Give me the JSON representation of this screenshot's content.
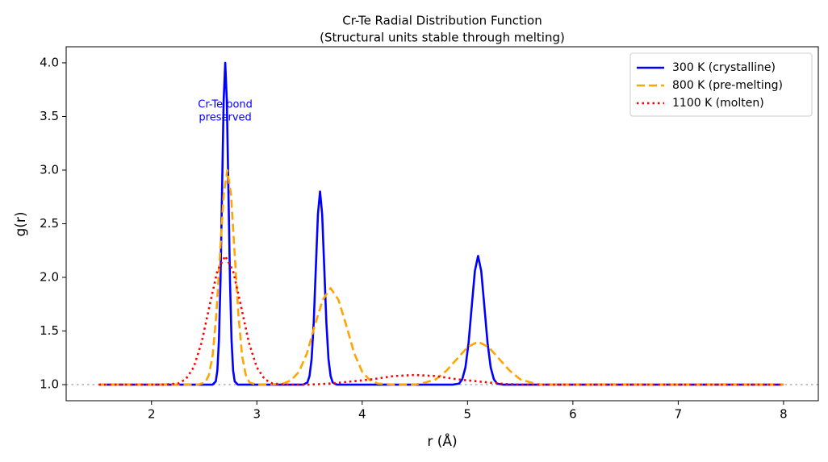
{
  "chart_data": {
    "type": "line",
    "title": "Cr-Te Radial Distribution Function",
    "subtitle": "(Structural units stable through melting)",
    "x_label": "r (Å)",
    "y_label": "g(r)",
    "xlim": [
      1.19,
      8.33
    ],
    "ylim": [
      0.85,
      4.15
    ],
    "xticks": [
      2,
      3,
      4,
      5,
      6,
      7,
      8
    ],
    "yticks": [
      {
        "value": 1,
        "label": "1.0"
      },
      {
        "value": 1.5,
        "label": "1.5"
      },
      {
        "value": 2,
        "label": "2.0"
      },
      {
        "value": 2.5,
        "label": "2.5"
      },
      {
        "value": 3,
        "label": "3.0"
      },
      {
        "value": 3.5,
        "label": "3.5"
      },
      {
        "value": 4,
        "label": "4.0"
      }
    ],
    "reference_line": {
      "y": 1,
      "color": "#808080",
      "dash": "dotted"
    },
    "legend": "upper right",
    "annotation": {
      "lines": [
        "Cr-Te bond",
        "preserved"
      ],
      "x": 2.7,
      "y": 3.55,
      "color": "#0000ff"
    },
    "series": [
      {
        "name": "300 K (crystalline)",
        "color": "#0000ff",
        "dash": "solid",
        "x": [
          1.5,
          2.58,
          2.61,
          2.625,
          2.64,
          2.655,
          2.67,
          2.685,
          2.7,
          2.715,
          2.73,
          2.745,
          2.76,
          2.775,
          2.79,
          2.82,
          3.44,
          3.48,
          3.5,
          3.52,
          3.54,
          3.56,
          3.58,
          3.6,
          3.62,
          3.64,
          3.66,
          3.68,
          3.7,
          3.72,
          3.76,
          4.86,
          4.92,
          4.95,
          4.98,
          5.01,
          5.04,
          5.07,
          5.1,
          5.13,
          5.16,
          5.19,
          5.22,
          5.25,
          5.28,
          5.34,
          8
        ],
        "values": [
          1,
          1,
          1.03,
          1.13,
          1.41,
          1.97,
          2.82,
          3.65,
          4.0,
          3.65,
          2.82,
          1.97,
          1.41,
          1.13,
          1.03,
          1,
          1,
          1.02,
          1.08,
          1.24,
          1.58,
          2.09,
          2.59,
          2.8,
          2.59,
          2.09,
          1.58,
          1.24,
          1.08,
          1.02,
          1,
          1,
          1.01,
          1.05,
          1.16,
          1.39,
          1.73,
          2.06,
          2.2,
          2.06,
          1.73,
          1.39,
          1.16,
          1.05,
          1.01,
          1,
          1
        ]
      },
      {
        "name": "800 K (pre-melting)",
        "color": "#ffa500",
        "dash": "dashed",
        "x": [
          1.5,
          2.44,
          2.51,
          2.545,
          2.58,
          2.615,
          2.65,
          2.685,
          2.72,
          2.755,
          2.79,
          2.825,
          2.86,
          2.895,
          2.93,
          3.0,
          3.1,
          3.25,
          3.325,
          3.4,
          3.475,
          3.55,
          3.625,
          3.7,
          3.775,
          3.85,
          3.925,
          4.0,
          4.075,
          4.15,
          4.3,
          4.5,
          4.6,
          4.7,
          4.8,
          4.9,
          5.0,
          5.1,
          5.2,
          5.3,
          5.4,
          5.5,
          5.6,
          5.7,
          5.9,
          8
        ],
        "values": [
          1,
          1,
          1.02,
          1.09,
          1.27,
          1.65,
          2.21,
          2.77,
          3.0,
          2.77,
          2.21,
          1.65,
          1.27,
          1.09,
          1.02,
          1,
          1,
          1.01,
          1.04,
          1.12,
          1.29,
          1.55,
          1.79,
          1.9,
          1.79,
          1.55,
          1.29,
          1.12,
          1.04,
          1.01,
          1,
          1,
          1.02,
          1.05,
          1.13,
          1.24,
          1.35,
          1.4,
          1.35,
          1.24,
          1.13,
          1.05,
          1.02,
          1,
          1,
          1
        ]
      },
      {
        "name": "1100 K (molten)",
        "color": "#ff0000",
        "dash": "dotted",
        "x": [
          1.5,
          2.1,
          2.25,
          2.325,
          2.4,
          2.475,
          2.55,
          2.625,
          2.7,
          2.775,
          2.85,
          2.925,
          3.0,
          3.075,
          3.15,
          3.3,
          3.5,
          3.7,
          3.9,
          4.1,
          4.3,
          4.5,
          4.7,
          4.9,
          5.1,
          5.3,
          5.5,
          8
        ],
        "values": [
          1,
          1,
          1.01,
          1.05,
          1.16,
          1.39,
          1.73,
          2.06,
          2.2,
          2.06,
          1.73,
          1.39,
          1.16,
          1.05,
          1.01,
          1,
          1,
          1.01,
          1.03,
          1.05,
          1.08,
          1.09,
          1.08,
          1.05,
          1.03,
          1.01,
          1,
          1
        ]
      }
    ]
  }
}
